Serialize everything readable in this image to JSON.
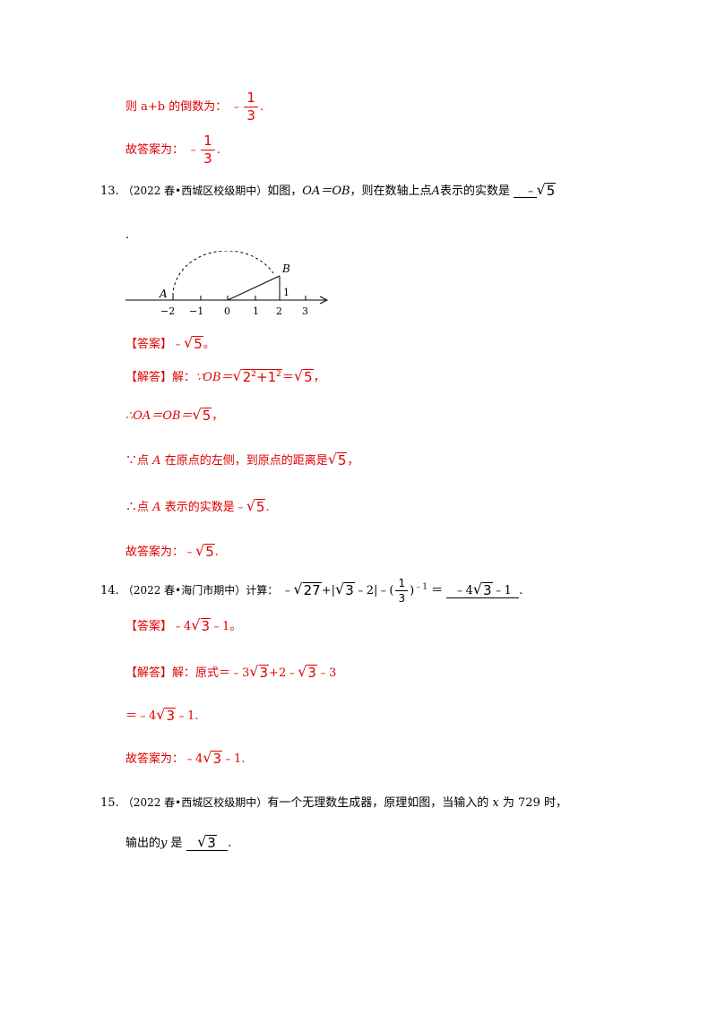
{
  "p12": {
    "line1_text": "则 a+b 的倒数为：",
    "line1_neg": "﹣",
    "frac_num": "1",
    "frac_den": "3",
    "line1_end": ".",
    "line2_text": "故答案为：",
    "line2_neg": "﹣",
    "line2_end": "."
  },
  "q13": {
    "number": "13.",
    "source": "（2022 春•西城区校级期中）",
    "question_a": "如图，",
    "question_eq": "OA＝OB",
    "question_b": "，则在数轴上点",
    "question_pt": "A",
    "question_c": "表示的实数是",
    "answer_blank": "﹣",
    "sqrt5": "5",
    "period": ".",
    "figure": {
      "labels": [
        "A",
        "B",
        "1"
      ],
      "ticks": [
        "−2",
        "−1",
        "0",
        "1",
        "2",
        "3"
      ]
    },
    "answer_tag": "【答案】",
    "answer_text": "﹣",
    "answer_end": "。",
    "sol_tag": "【解答】",
    "sol_label": "解：",
    "sol_l1_a": "∵OB＝",
    "sol_l1_inner": "2",
    "sol_l1_exp": "2",
    "sol_l1_plus": "+1",
    "sol_l1_exp2": "2",
    "sol_l1_b": "＝",
    "sol_l1_end": "，",
    "sol_l2_a": "∴OA＝OB＝",
    "sol_l2_end": "，",
    "sol_l3_a": "∵点",
    "sol_l3_b": "在原点的左侧，到原点的距离是",
    "sol_l3_end": "，",
    "sol_l4_a": "∴点",
    "sol_l4_b": "表示的实数是﹣",
    "sol_l4_end": ".",
    "final_label": "故答案为：﹣",
    "final_end": "."
  },
  "q14": {
    "number": "14.",
    "source": "（2022 春•海门市期中）计算：",
    "expr_neg": "﹣",
    "expr_sqrt27": "27",
    "expr_plus": "+|",
    "expr_sqrt3": "3",
    "expr_minus2": "﹣2|﹣(",
    "expr_frac_num": "1",
    "expr_frac_den": "3",
    "expr_close": ")",
    "expr_exp": "﹣1",
    "expr_eq": "＝",
    "answer_blank_a": "﹣4",
    "answer_blank_b": "﹣1",
    "period": ".",
    "answer_tag": "【答案】",
    "answer_a": "﹣4",
    "answer_b": "﹣1。",
    "sol_tag": "【解答】",
    "sol_l1_a": "解：原式＝﹣3",
    "sol_l1_b": "+2﹣",
    "sol_l1_c": "﹣3",
    "sol_l2_a": "＝﹣4",
    "sol_l2_b": "﹣1.",
    "final_a": "故答案为：﹣4",
    "final_b": "﹣1."
  },
  "q15": {
    "number": "15.",
    "source": "（2022 春•西城区校级期中）",
    "text_a": "有一个无理数生成器，原理如图，当输入的",
    "var_x": "x",
    "text_b": "为 729 时，",
    "text_c": "输出的",
    "var_y": "y",
    "text_d": "是",
    "answer_sqrt": "3",
    "period": "."
  }
}
